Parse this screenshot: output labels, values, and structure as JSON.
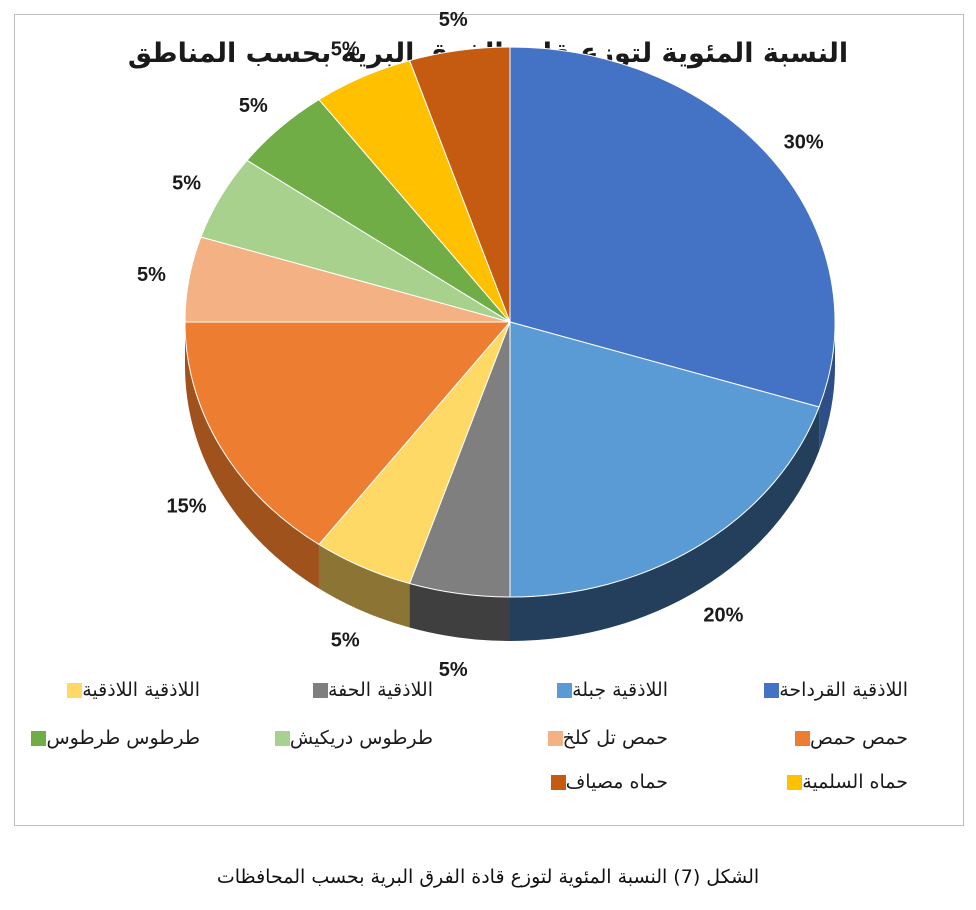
{
  "chart_data": {
    "type": "pie",
    "title": "النسبة المئوية لتوزع قادة الفرق البرية بحسب المناطق",
    "slices": [
      {
        "label": "اللاذقية  القرداحة",
        "value": 30,
        "value_label": "30%",
        "color": "#4472C4",
        "side": "#2E4E87"
      },
      {
        "label": "اللاذقية  جبلة",
        "value": 20,
        "value_label": "20%",
        "color": "#5B9BD5",
        "side": "#243F5C"
      },
      {
        "label": "اللاذقية  الحفة",
        "value": 5,
        "value_label": "5%",
        "color": "#7F7F7F",
        "side": "#3F3F3F"
      },
      {
        "label": "اللاذقية  اللاذقية",
        "value": 5,
        "value_label": "5%",
        "color": "#FFD966",
        "side": "#8C7434"
      },
      {
        "label": "حمص حمص",
        "value": 15,
        "value_label": "15%",
        "color": "#ED7D31",
        "side": "#A0521C"
      },
      {
        "label": "حمص تل كلخ",
        "value": 5,
        "value_label": "5%",
        "color": "#F4B183",
        "side": "#9C6E4D"
      },
      {
        "label": "طرطوس دريكيش",
        "value": 5,
        "value_label": "5%",
        "color": "#A9D18E",
        "side": "#6E8A5B"
      },
      {
        "label": "طرطوس طرطوس",
        "value": 5,
        "value_label": "5%",
        "color": "#70AD47",
        "side": "#4A7230"
      },
      {
        "label": "حماه السلمية",
        "value": 5,
        "value_label": "5%",
        "color": "#FFC000",
        "side": "#A67C00"
      },
      {
        "label": "حماه مصياف",
        "value": 5,
        "value_label": "5%",
        "color": "#C55A11",
        "side": "#7E3A0B"
      }
    ],
    "legend_position": "bottom"
  },
  "caption": "الشكل (7) النسبة المئوية لتوزع قادة الفرق البرية بحسب المحافظات"
}
